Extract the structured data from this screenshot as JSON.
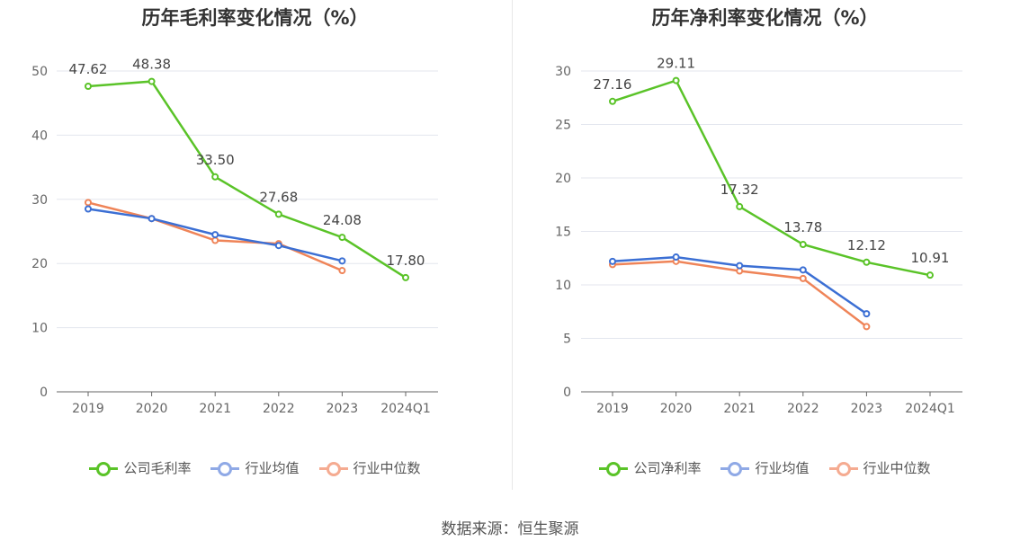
{
  "source": "数据来源：恒生聚源",
  "chart_data": [
    {
      "type": "line",
      "title": "历年毛利率变化情况（%）",
      "categories": [
        "2019",
        "2020",
        "2021",
        "2022",
        "2023",
        "2024Q1"
      ],
      "ylim": [
        0,
        50
      ],
      "yticks": [
        0,
        10,
        20,
        30,
        40,
        50
      ],
      "grid": true,
      "legend_position": "bottom",
      "series": [
        {
          "name": "公司毛利率",
          "color": "#5ac328",
          "labels": true,
          "values": [
            47.62,
            48.38,
            33.5,
            27.68,
            24.08,
            17.8
          ],
          "value_labels": [
            "47.62",
            "48.38",
            "33.50",
            "27.68",
            "24.08",
            "17.80"
          ]
        },
        {
          "name": "行业均值",
          "color": "#3b6fd4",
          "legend_color": "#8fa9e6",
          "labels": false,
          "values": [
            28.5,
            27.0,
            24.5,
            22.8,
            20.4,
            null
          ]
        },
        {
          "name": "行业中位数",
          "color": "#ef8458",
          "legend_color": "#f5ab91",
          "labels": false,
          "values": [
            29.5,
            27.0,
            23.6,
            23.1,
            18.9,
            null
          ]
        }
      ]
    },
    {
      "type": "line",
      "title": "历年净利率变化情况（%）",
      "categories": [
        "2019",
        "2020",
        "2021",
        "2022",
        "2023",
        "2024Q1"
      ],
      "ylim": [
        0,
        30
      ],
      "yticks": [
        0,
        5,
        10,
        15,
        20,
        25,
        30
      ],
      "grid": true,
      "legend_position": "bottom",
      "series": [
        {
          "name": "公司净利率",
          "color": "#5ac328",
          "labels": true,
          "values": [
            27.16,
            29.11,
            17.32,
            13.78,
            12.12,
            10.91
          ],
          "value_labels": [
            "27.16",
            "29.11",
            "17.32",
            "13.78",
            "12.12",
            "10.91"
          ]
        },
        {
          "name": "行业均值",
          "color": "#3b6fd4",
          "legend_color": "#8fa9e6",
          "labels": false,
          "values": [
            12.2,
            12.6,
            11.8,
            11.4,
            7.3,
            null
          ]
        },
        {
          "name": "行业中位数",
          "color": "#ef8458",
          "legend_color": "#f5ab91",
          "labels": false,
          "values": [
            11.9,
            12.2,
            11.3,
            10.6,
            6.1,
            null
          ]
        }
      ]
    }
  ]
}
